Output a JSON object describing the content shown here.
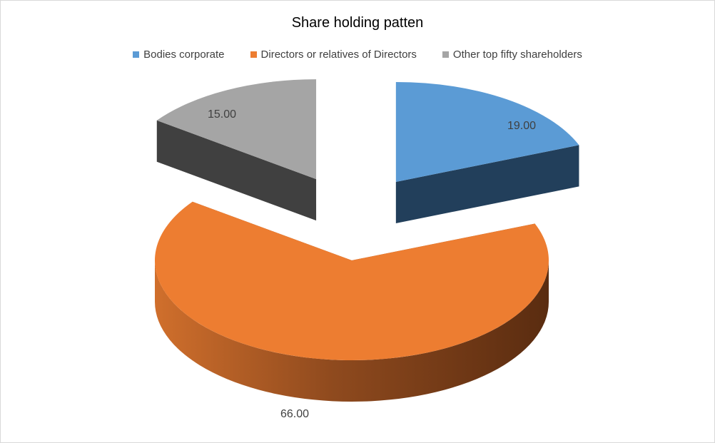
{
  "chart_data": {
    "type": "pie",
    "title": "Share holding patten",
    "legend_position": "top",
    "style": "3d-exploded",
    "series": [
      {
        "name": "Bodies corporate",
        "value": 19.0,
        "label": "19.00",
        "color": "#5B9BD5",
        "side_color": "#223F5B"
      },
      {
        "name": "Directors or relatives of Directors",
        "value": 66.0,
        "label": "66.00",
        "color": "#ED7D31",
        "side_color": "#8E4A1E"
      },
      {
        "name": "Other top fifty shareholders",
        "value": 15.0,
        "label": "15.00",
        "color": "#A5A5A5",
        "side_color": "#404040"
      }
    ]
  }
}
